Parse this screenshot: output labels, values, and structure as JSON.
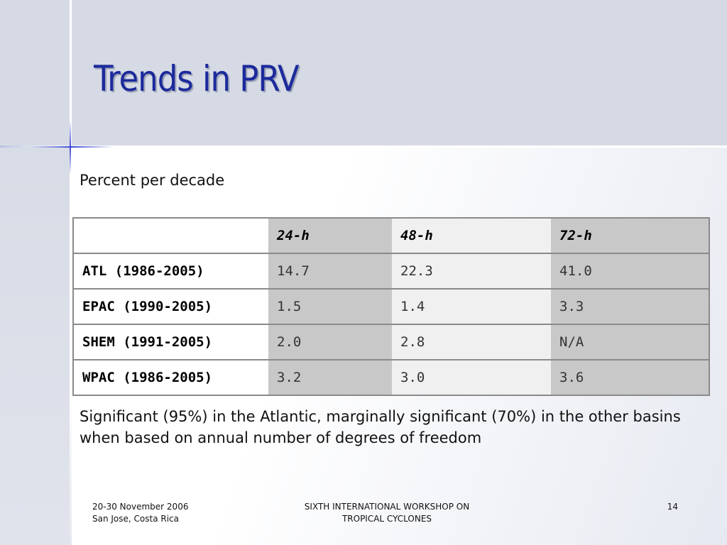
{
  "slide": {
    "title": "Trends in PRV",
    "subtitle": "Percent per decade",
    "note": "Significant (95%) in the Atlantic, marginally significant (70%) in the other basins when based on annual number of degrees of freedom"
  },
  "table": {
    "header": [
      "",
      "24-h",
      "48-h",
      "72-h"
    ],
    "rows": [
      [
        "ATL (1986-2005)",
        "14.7",
        "22.3",
        "41.0"
      ],
      [
        "EPAC (1990-2005)",
        "1.5",
        "1.4",
        "3.3"
      ],
      [
        "SHEM (1991-2005)",
        "2.0",
        "2.8",
        "N/A"
      ],
      [
        "WPAC (1986-2005)",
        "3.2",
        "3.0",
        "3.6"
      ]
    ]
  },
  "footer": {
    "date_line": "20-30 November 2006",
    "location_line": "San Jose, Costa Rica",
    "event_line1": "SIXTH INTERNATIONAL WORKSHOP ON",
    "event_line2": "TROPICAL CYCLONES",
    "page_number": "14"
  },
  "colors": {
    "title": "#1c2a9c",
    "accent_sparkle": "#3a46d0",
    "table_dark_column": "#c8c8c8",
    "table_light_column": "#f0f0f0"
  }
}
